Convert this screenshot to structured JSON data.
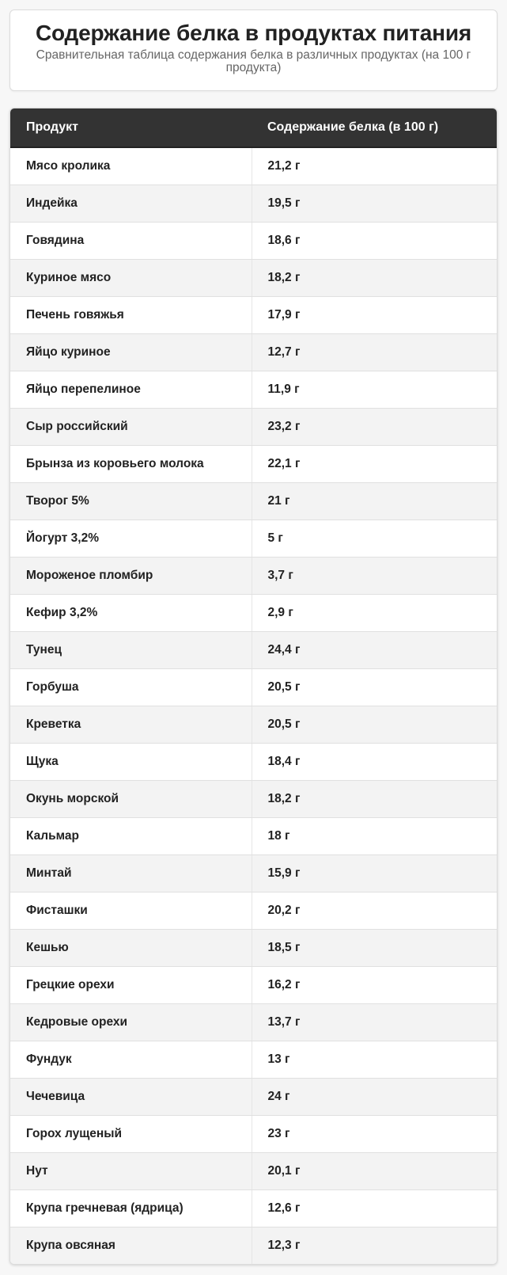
{
  "header": {
    "title": "Содержание белка в продуктах питания",
    "subtitle": "Сравнительная таблица содержания белка в различных продуктах (на 100 г продукта)"
  },
  "table": {
    "columns": [
      "Продукт",
      "Содержание белка (в 100 г)"
    ],
    "rows": [
      {
        "product": "Мясо кролика",
        "protein": "21,2 г"
      },
      {
        "product": "Индейка",
        "protein": "19,5 г"
      },
      {
        "product": "Говядина",
        "protein": "18,6 г"
      },
      {
        "product": "Куриное мясо",
        "protein": "18,2 г"
      },
      {
        "product": "Печень говяжья",
        "protein": "17,9 г"
      },
      {
        "product": "Яйцо куриное",
        "protein": "12,7 г"
      },
      {
        "product": "Яйцо перепелиное",
        "protein": "11,9 г"
      },
      {
        "product": "Сыр российский",
        "protein": "23,2 г"
      },
      {
        "product": "Брынза из коровьего молока",
        "protein": "22,1 г"
      },
      {
        "product": "Творог 5%",
        "protein": "21 г"
      },
      {
        "product": "Йогурт 3,2%",
        "protein": "5 г"
      },
      {
        "product": "Мороженое пломбир",
        "protein": "3,7 г"
      },
      {
        "product": "Кефир 3,2%",
        "protein": "2,9 г"
      },
      {
        "product": "Тунец",
        "protein": "24,4 г"
      },
      {
        "product": "Горбуша",
        "protein": "20,5 г"
      },
      {
        "product": "Креветка",
        "protein": "20,5 г"
      },
      {
        "product": "Щука",
        "protein": "18,4 г"
      },
      {
        "product": "Окунь морской",
        "protein": "18,2 г"
      },
      {
        "product": "Кальмар",
        "protein": "18 г"
      },
      {
        "product": "Минтай",
        "protein": "15,9 г"
      },
      {
        "product": "Фисташки",
        "protein": "20,2 г"
      },
      {
        "product": "Кешью",
        "protein": "18,5 г"
      },
      {
        "product": "Грецкие орехи",
        "protein": "16,2 г"
      },
      {
        "product": "Кедровые орехи",
        "protein": "13,7 г"
      },
      {
        "product": "Фундук",
        "protein": "13 г"
      },
      {
        "product": "Чечевица",
        "protein": "24 г"
      },
      {
        "product": "Горох лущеный",
        "protein": "23 г"
      },
      {
        "product": "Нут",
        "protein": "20,1 г"
      },
      {
        "product": "Крупа гречневая (ядрица)",
        "protein": "12,6 г"
      },
      {
        "product": "Крупа овсяная",
        "protein": "12,3 г"
      }
    ]
  }
}
